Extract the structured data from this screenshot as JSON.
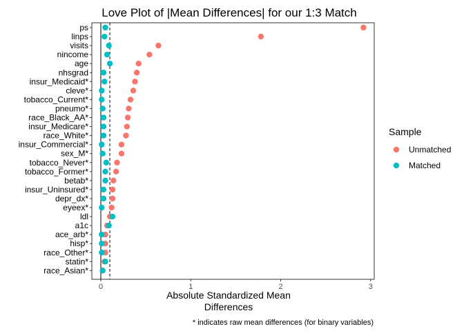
{
  "chart_data": {
    "type": "scatter",
    "title": "Love Plot of |Mean Differences| for our 1:3 Match",
    "xlabel": "Absolute Standardized Mean Differences",
    "xlabel_lines": [
      "Absolute Standardized Mean",
      "Differences"
    ],
    "caption": "* indicates raw mean differences (for binary variables)",
    "xlim": [
      -0.1,
      3.04
    ],
    "xticks": [
      0,
      1,
      2,
      3
    ],
    "vlines": [
      0,
      0.1
    ],
    "legend": {
      "title": "Sample",
      "position": "right"
    },
    "categories": [
      "ps",
      "linps",
      "visits",
      "nincome",
      "age",
      "nhsgrad",
      "insur_Medicaid*",
      "cleve*",
      "tobacco_Current*",
      "pneumo*",
      "race_Black_AA*",
      "insur_Medicare*",
      "race_White*",
      "insur_Commercial*",
      "sex_M*",
      "tobacco_Never*",
      "tobacco_Former*",
      "betab*",
      "insur_Uninsured*",
      "depr_dx*",
      "eyeex*",
      "ldl",
      "a1c",
      "ace_arb*",
      "hisp*",
      "race_Other*",
      "statin*",
      "race_Asian*"
    ],
    "series": [
      {
        "name": "Unmatched",
        "color": "#F8766D",
        "values": [
          2.92,
          1.78,
          0.64,
          0.54,
          0.42,
          0.4,
          0.38,
          0.36,
          0.33,
          0.31,
          0.3,
          0.29,
          0.28,
          0.23,
          0.23,
          0.18,
          0.17,
          0.14,
          0.13,
          0.13,
          0.12,
          0.1,
          0.07,
          0.05,
          0.05,
          0.05,
          0.04,
          0.02
        ]
      },
      {
        "name": "Matched",
        "color": "#00BFC4",
        "values": [
          0.05,
          0.04,
          0.09,
          0.07,
          0.1,
          0.03,
          0.04,
          0.01,
          0.01,
          0.02,
          0.03,
          0.03,
          0.03,
          0.01,
          0.02,
          0.06,
          0.05,
          0.05,
          0.03,
          0.03,
          0.01,
          0.13,
          0.09,
          0.01,
          0.01,
          0.01,
          0.05,
          0.02
        ]
      }
    ]
  }
}
